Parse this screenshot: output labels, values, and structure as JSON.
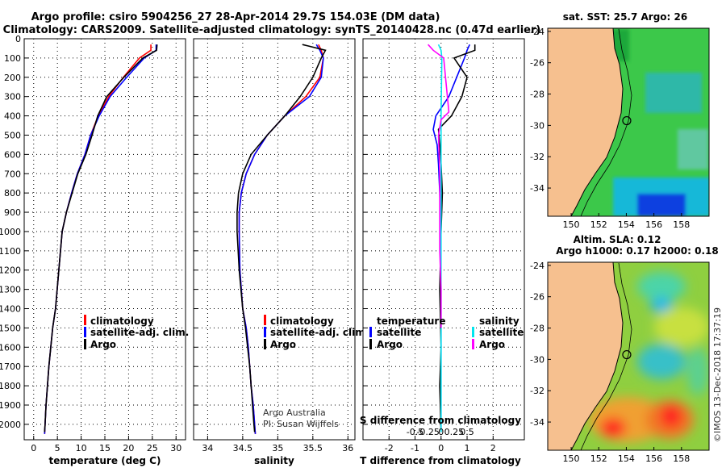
{
  "title_line1": "Argo profile: csiro 5904256_27 28-Apr-2014 29.7S 154.03E (DM data)",
  "title_line2": "Climatology: CARS2009. Satellite-adjusted climatology: synTS_20140428.nc (0.47d earlier)",
  "credit_line1": "Argo Australia",
  "credit_line2": "PI: Susan Wijffels",
  "timestamp": "©IMOS 13-Dec-2018 17:37:19",
  "colors": {
    "climatology": "#ff0000",
    "satellite": "#0000ff",
    "argo": "#000000",
    "satellite_s": "#00e5ee",
    "argo_s": "#ff00ff",
    "land": "#f6c08f"
  },
  "legend_temperature": {
    "climatology": "climatology",
    "satellite": "satellite-adj. clim.",
    "argo": "Argo"
  },
  "legend_salinity": {
    "climatology": "climatology",
    "satellite": "satellite-adj. clim.",
    "argo": "Argo"
  },
  "legend_diff": {
    "temperature_header": "temperature",
    "salinity_header": "salinity",
    "satellite": "satellite",
    "argo": "Argo",
    "s_axis_label": "S difference from climatology",
    "s_ticks": [
      "-0.5",
      "-0.25",
      "0",
      "0.25",
      "0.5"
    ]
  },
  "chart_data": [
    {
      "type": "line",
      "id": "temperature",
      "xlabel": "temperature (deg C)",
      "ylabel": "",
      "xlim": [
        -2,
        32
      ],
      "ylim": [
        2080,
        0
      ],
      "xticks": [
        0,
        5,
        10,
        15,
        20,
        25,
        30
      ],
      "yticks": [
        0,
        100,
        200,
        300,
        400,
        500,
        600,
        700,
        800,
        900,
        1000,
        1100,
        1200,
        1300,
        1400,
        1500,
        1600,
        1700,
        1800,
        1900,
        2000
      ],
      "series": [
        {
          "name": "climatology",
          "color": "#ff0000",
          "x": [
            24.7,
            24.7,
            22.3,
            18.9,
            15.8,
            13.6,
            12.0,
            10.8,
            9.2,
            8.0,
            6.9,
            6.0,
            5.3,
            4.6,
            4.0,
            3.6,
            3.2,
            2.9,
            2.6,
            2.4,
            2.3
          ],
          "y": [
            30,
            60,
            100,
            200,
            300,
            400,
            500,
            600,
            700,
            800,
            900,
            1000,
            1200,
            1400,
            1500,
            1600,
            1700,
            1800,
            1900,
            2000,
            2050
          ]
        },
        {
          "name": "satellite-adj. clim.",
          "color": "#0000ff",
          "x": [
            25.8,
            25.8,
            23.3,
            19.6,
            16.1,
            13.8,
            12.0,
            10.8,
            9.2,
            8.0,
            6.9,
            6.0,
            5.3,
            4.6,
            4.0,
            3.6,
            3.2,
            2.9,
            2.6,
            2.4,
            2.3
          ],
          "y": [
            30,
            60,
            100,
            200,
            300,
            400,
            500,
            600,
            700,
            800,
            900,
            1000,
            1200,
            1400,
            1500,
            1600,
            1700,
            1800,
            1900,
            2000,
            2050
          ]
        },
        {
          "name": "Argo",
          "color": "#000000",
          "x": [
            26.0,
            25.9,
            23.0,
            19.0,
            15.4,
            13.5,
            12.3,
            11.0,
            9.3,
            8.1,
            6.9,
            6.0,
            5.3,
            4.6,
            4.0,
            3.6,
            3.2,
            2.9,
            2.6,
            2.4,
            2.3
          ],
          "y": [
            30,
            60,
            100,
            200,
            300,
            400,
            500,
            600,
            700,
            800,
            900,
            1000,
            1200,
            1400,
            1500,
            1600,
            1700,
            1800,
            1900,
            2000,
            2040
          ]
        }
      ]
    },
    {
      "type": "line",
      "id": "salinity",
      "xlabel": "salinity",
      "ylabel": "",
      "xlim": [
        33.8,
        36.1
      ],
      "ylim": [
        2080,
        0
      ],
      "xticks": [
        34,
        34.5,
        35,
        35.5,
        36
      ],
      "series": [
        {
          "name": "climatology",
          "color": "#ff0000",
          "x": [
            35.58,
            35.62,
            35.65,
            35.6,
            35.4,
            35.1,
            34.85,
            34.67,
            34.55,
            34.48,
            34.45,
            34.45,
            34.46,
            34.5,
            34.55,
            34.58,
            34.6,
            34.62,
            34.65,
            34.67,
            34.68
          ],
          "y": [
            30,
            60,
            100,
            200,
            300,
            400,
            500,
            600,
            700,
            800,
            900,
            1000,
            1200,
            1400,
            1500,
            1600,
            1700,
            1800,
            1900,
            2000,
            2050
          ]
        },
        {
          "name": "satellite-adj. clim.",
          "color": "#0000ff",
          "x": [
            35.55,
            35.6,
            35.65,
            35.62,
            35.45,
            35.1,
            34.85,
            34.67,
            34.55,
            34.48,
            34.45,
            34.45,
            34.46,
            34.5,
            34.55,
            34.58,
            34.6,
            34.62,
            34.65,
            34.67,
            34.68
          ],
          "y": [
            30,
            60,
            100,
            200,
            300,
            400,
            500,
            600,
            700,
            800,
            900,
            1000,
            1200,
            1400,
            1500,
            1600,
            1700,
            1800,
            1900,
            2000,
            2050
          ]
        },
        {
          "name": "Argo",
          "color": "#000000",
          "x": [
            35.35,
            35.68,
            35.62,
            35.5,
            35.32,
            35.1,
            34.85,
            34.62,
            34.5,
            34.44,
            34.42,
            34.42,
            34.45,
            34.5,
            34.54,
            34.57,
            34.6,
            34.62,
            34.64,
            34.66,
            34.67
          ],
          "y": [
            30,
            60,
            100,
            200,
            300,
            400,
            500,
            600,
            700,
            800,
            900,
            1000,
            1200,
            1400,
            1500,
            1600,
            1700,
            1800,
            1900,
            2000,
            2040
          ]
        }
      ]
    },
    {
      "type": "line",
      "id": "differences",
      "xlabel": "T difference from climatology",
      "ylabel": "",
      "xlim": [
        -3,
        3.2
      ],
      "ylim": [
        2080,
        0
      ],
      "xticks": [
        -2,
        -1,
        0,
        1,
        2
      ],
      "series": [
        {
          "name": "temperature satellite",
          "color": "#0000ff",
          "x": [
            1.1,
            1.0,
            0.9,
            0.6,
            0.3,
            -0.2,
            -0.3,
            -0.15,
            -0.1,
            -0.05,
            -0.02,
            0.0,
            0.0,
            0.0,
            0.0
          ],
          "y": [
            30,
            60,
            100,
            200,
            300,
            400,
            470,
            550,
            650,
            800,
            1000,
            1300,
            1600,
            1800,
            2040
          ]
        },
        {
          "name": "temperature Argo",
          "color": "#000000",
          "x": [
            1.3,
            1.3,
            0.5,
            1.0,
            0.8,
            0.4,
            -0.1,
            -0.05,
            0.0,
            0.05,
            0.0,
            -0.05,
            0.0,
            -0.05,
            0.0
          ],
          "y": [
            30,
            60,
            100,
            200,
            300,
            400,
            470,
            550,
            650,
            800,
            1000,
            1300,
            1600,
            1800,
            2040
          ]
        },
        {
          "name": "salinity satellite",
          "color": "#00e5ee",
          "x": [
            -0.1,
            0.0,
            0.03,
            0.02,
            0.01,
            0.0,
            0.0,
            0.0,
            0.0,
            0.0,
            0.0,
            0.0
          ],
          "y": [
            30,
            60,
            100,
            200,
            300,
            400,
            500,
            700,
            900,
            1200,
            1600,
            2040
          ]
        },
        {
          "name": "salinity Argo",
          "color": "#ff00ff",
          "x": [
            -0.5,
            -0.3,
            0.1,
            0.3,
            0.0,
            -0.1,
            -0.05,
            -0.05,
            -0.05,
            0.0,
            0.0
          ],
          "y": [
            30,
            60,
            100,
            380,
            420,
            500,
            700,
            900,
            1100,
            1300,
            1500
          ]
        }
      ]
    },
    {
      "type": "heatmap",
      "id": "sst_map",
      "title": "sat. SST: 25.7 Argo: 26",
      "xticks": [
        150,
        152,
        154,
        156,
        158
      ],
      "yticks": [
        -24,
        -26,
        -28,
        -30,
        -32,
        -34
      ],
      "xlim": [
        148.3,
        160
      ],
      "ylim": [
        -35.8,
        -23.8
      ],
      "argo_position": {
        "lon": 154.03,
        "lat": -29.7
      }
    },
    {
      "type": "heatmap",
      "id": "sla_map",
      "title_line1": "Altim. SLA: 0.12",
      "title_line2": "Argo h1000: 0.17 h2000: 0.18",
      "xticks": [
        150,
        152,
        154,
        156,
        158
      ],
      "yticks": [
        -24,
        -26,
        -28,
        -30,
        -32,
        -34
      ],
      "xlim": [
        148.3,
        160
      ],
      "ylim": [
        -35.8,
        -23.8
      ],
      "argo_position": {
        "lon": 154.03,
        "lat": -29.7
      }
    }
  ]
}
